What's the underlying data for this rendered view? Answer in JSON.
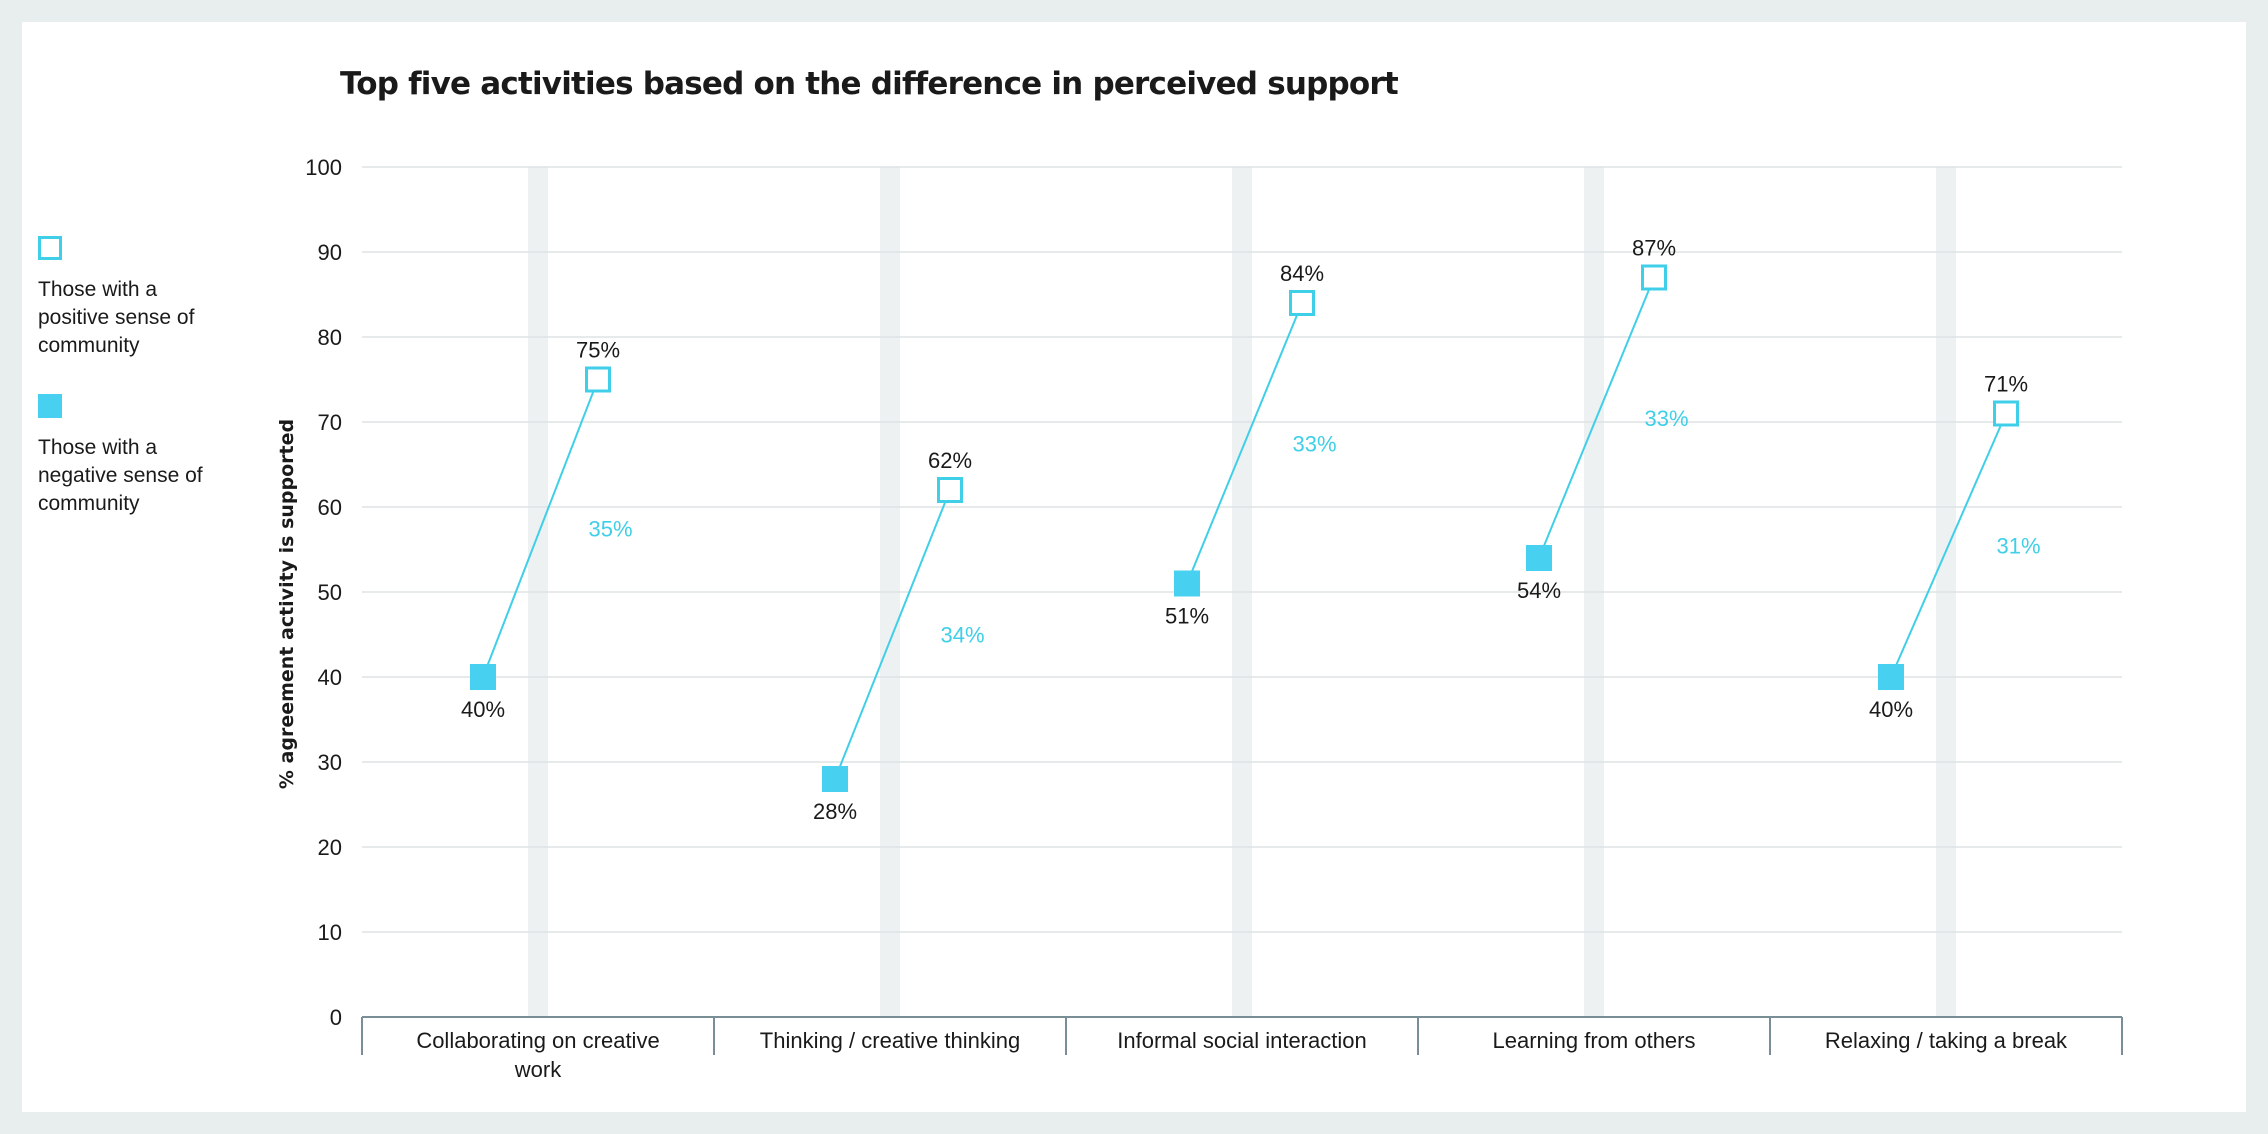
{
  "colors": {
    "accent": "#3fcfe8",
    "filled": "#48d0f0",
    "text": "#1a1a1a",
    "grid": "#dde3e4",
    "band": "#eef1f2",
    "axis": "#7a8e96"
  },
  "legend": {
    "items": [
      {
        "label": "Those with a positive sense of community",
        "style": "hollow-square"
      },
      {
        "label": "Those with a negative sense of community",
        "style": "filled-square"
      }
    ]
  },
  "chart_data": {
    "type": "dot-plot",
    "title": "Top five activities based on the difference in perceived support",
    "ylabel": "% agreement activity is supported",
    "ylim": [
      0,
      100
    ],
    "yticks": [
      0,
      10,
      20,
      30,
      40,
      50,
      60,
      70,
      80,
      90,
      100
    ],
    "grid": true,
    "legend_position": "left",
    "categories": [
      "Collaborating on creative work",
      "Thinking / creative thinking",
      "Informal social interaction",
      "Learning from others",
      "Relaxing / taking a break"
    ],
    "series": [
      {
        "name": "Those with a positive sense of community",
        "values": [
          75,
          62,
          84,
          87,
          71
        ],
        "labels": [
          "75%",
          "62%",
          "84%",
          "87%",
          "71%"
        ]
      },
      {
        "name": "Those with a negative sense of community",
        "values": [
          40,
          28,
          51,
          54,
          40
        ],
        "labels": [
          "40%",
          "28%",
          "51%",
          "54%",
          "40%"
        ]
      }
    ],
    "differences": [
      "35%",
      "34%",
      "33%",
      "33%",
      "31%"
    ]
  }
}
